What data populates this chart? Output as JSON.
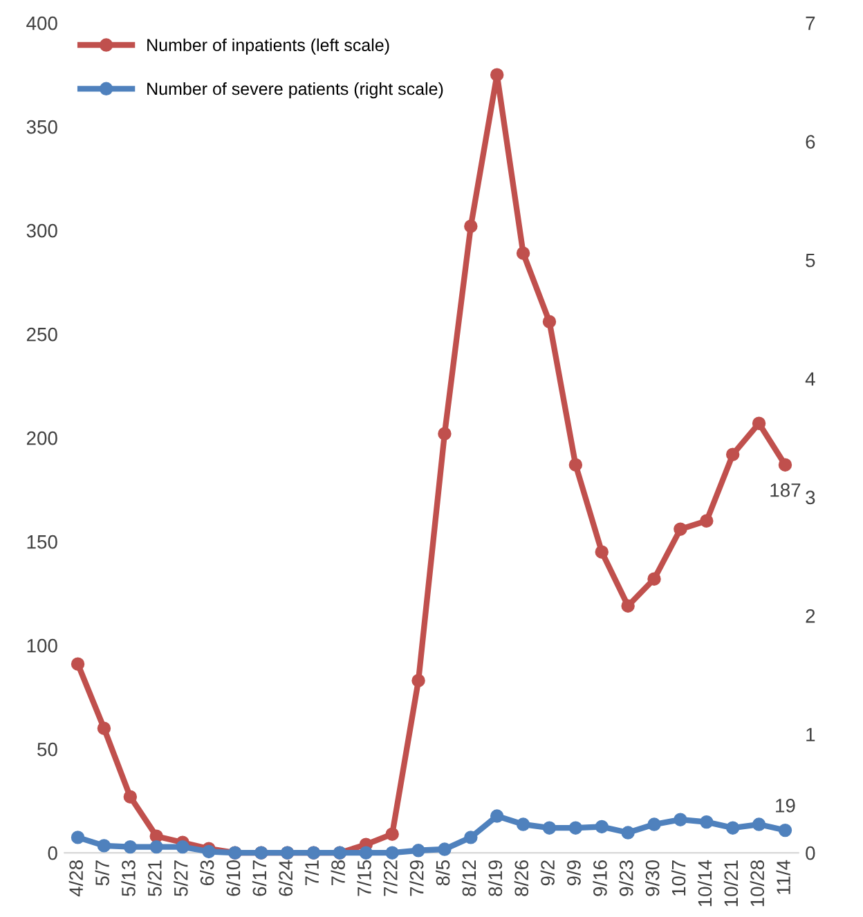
{
  "chart_data": {
    "type": "line",
    "categories": [
      "4/28",
      "5/7",
      "5/13",
      "5/21",
      "5/27",
      "6/3",
      "6/10",
      "6/17",
      "6/24",
      "7/1",
      "7/8",
      "7/15",
      "7/22",
      "7/29",
      "8/5",
      "8/12",
      "8/19",
      "8/26",
      "9/2",
      "9/9",
      "9/16",
      "9/23",
      "9/30",
      "10/7",
      "10/14",
      "10/21",
      "10/28",
      "11/4"
    ],
    "series": [
      {
        "name": "Number of inpatients (left scale)",
        "color": "#c0504d",
        "values": [
          91,
          60,
          27,
          8,
          5,
          2,
          0,
          0,
          0,
          0,
          0,
          4,
          9,
          83,
          202,
          302,
          375,
          289,
          256,
          187,
          145,
          119,
          132,
          156,
          160,
          192,
          207,
          187
        ],
        "value_labels": [
          null,
          null,
          null,
          null,
          null,
          null,
          null,
          null,
          null,
          null,
          null,
          null,
          null,
          null,
          null,
          null,
          null,
          null,
          null,
          null,
          null,
          null,
          null,
          null,
          null,
          null,
          null,
          "187"
        ]
      },
      {
        "name": "Number of severe patients (right scale)",
        "color": "#4f81bd",
        "axis": "y2",
        "values": [
          0.13,
          0.06,
          0.05,
          0.05,
          0.05,
          0.01,
          0,
          0,
          0,
          0,
          0,
          0,
          0,
          0.02,
          0.03,
          0.13,
          0.31,
          0.24,
          0.21,
          0.21,
          0.22,
          0.17,
          0.24,
          0.28,
          0.26,
          0.21,
          0.24,
          0.19
        ]
      }
    ],
    "ylim": [
      0,
      400
    ],
    "yticks": [
      0,
      50,
      100,
      150,
      200,
      250,
      300,
      350,
      400
    ],
    "y2lim": [
      0,
      7
    ],
    "y2ticks": [
      0,
      1,
      2,
      3,
      4,
      5,
      6,
      7
    ],
    "annotations": [
      "19"
    ],
    "marker": "circle",
    "line_style": "solid",
    "grid": false,
    "legend": "top left"
  }
}
